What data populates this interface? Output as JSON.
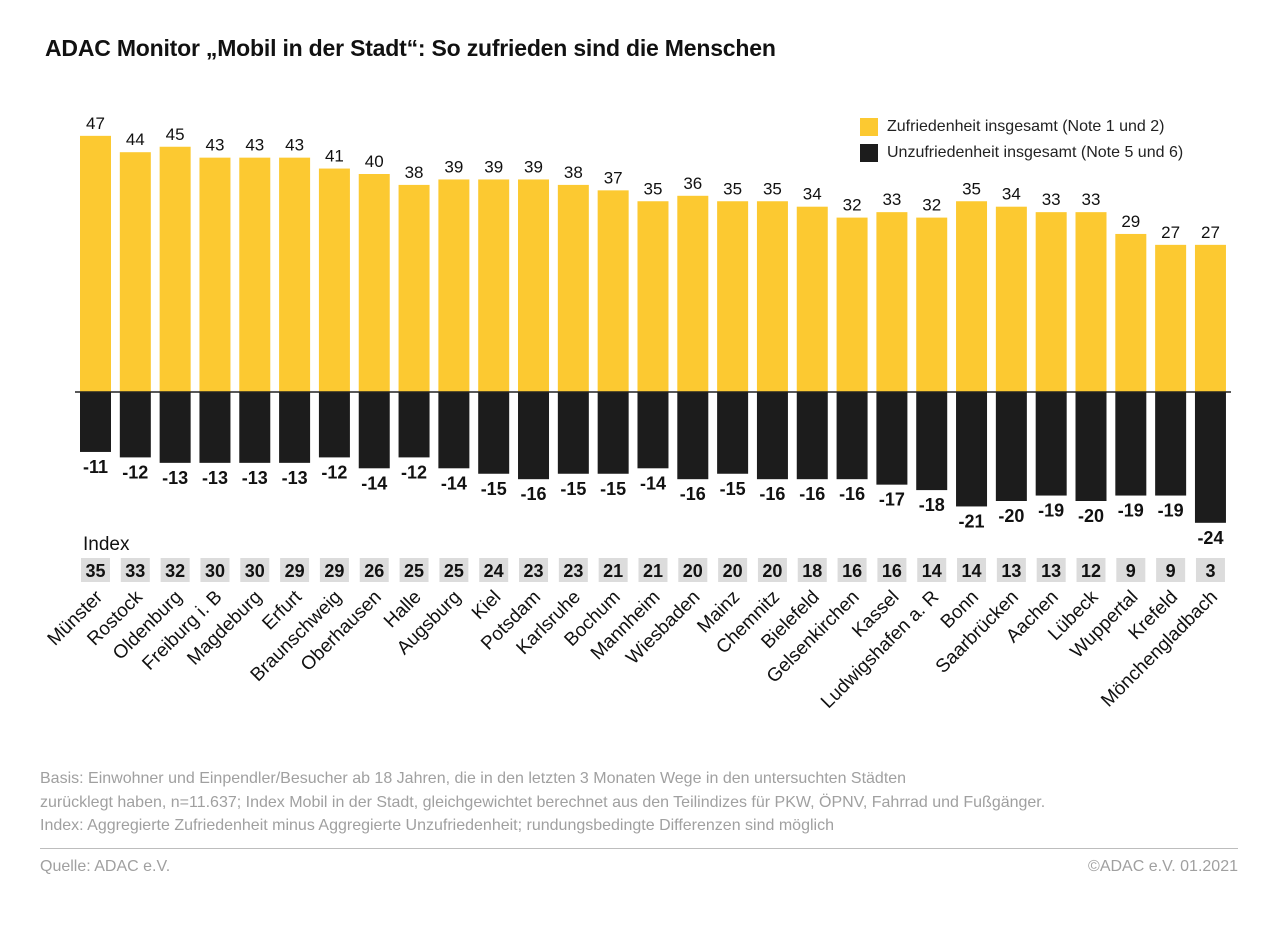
{
  "title": "ADAC Monitor „Mobil in der Stadt“: So zufrieden sind die Menschen",
  "legend": [
    {
      "label": "Zufriedenheit insgesamt (Note 1 und 2)",
      "color": "#FCC931"
    },
    {
      "label": "Unzufriedenheit insgesamt (Note 5 und 6)",
      "color": "#1C1C1C"
    }
  ],
  "index_label": "Index",
  "chart_data": {
    "type": "bar",
    "title": "ADAC Monitor „Mobil in der Stadt“: So zufrieden sind die Menschen",
    "xlabel": "",
    "ylabel": "",
    "ylim": [
      -24,
      47
    ],
    "grid": false,
    "legend_position": "top-right",
    "categories": [
      "Münster",
      "Rostock",
      "Oldenburg",
      "Freiburg i. B",
      "Magdeburg",
      "Erfurt",
      "Braunschweig",
      "Oberhausen",
      "Halle",
      "Augsburg",
      "Kiel",
      "Potsdam",
      "Karlsruhe",
      "Bochum",
      "Mannheim",
      "Wiesbaden",
      "Mainz",
      "Chemnitz",
      "Bielefeld",
      "Gelsenkirchen",
      "Kassel",
      "Ludwigshafen a. R",
      "Bonn",
      "Saarbrücken",
      "Aachen",
      "Lübeck",
      "Wuppertal",
      "Krefeld",
      "Mönchengladbach"
    ],
    "series": [
      {
        "name": "Zufriedenheit insgesamt (Note 1 und 2)",
        "color": "#FCC931",
        "values": [
          47,
          44,
          45,
          43,
          43,
          43,
          41,
          40,
          38,
          39,
          39,
          39,
          38,
          37,
          35,
          36,
          35,
          35,
          34,
          32,
          33,
          32,
          35,
          34,
          33,
          33,
          29,
          27,
          27
        ]
      },
      {
        "name": "Unzufriedenheit insgesamt (Note 5 und 6)",
        "color": "#1C1C1C",
        "values": [
          -11,
          -12,
          -13,
          -13,
          -13,
          -13,
          -12,
          -14,
          -12,
          -14,
          -15,
          -16,
          -15,
          -15,
          -14,
          -16,
          -15,
          -16,
          -16,
          -16,
          -17,
          -18,
          -21,
          -20,
          -19,
          -20,
          -19,
          -19,
          -24
        ]
      }
    ],
    "index": {
      "label": "Index",
      "values": [
        35,
        33,
        32,
        30,
        30,
        29,
        29,
        26,
        25,
        25,
        24,
        23,
        23,
        21,
        21,
        20,
        20,
        20,
        18,
        16,
        16,
        14,
        14,
        13,
        13,
        12,
        9,
        9,
        3
      ]
    }
  },
  "footnote": [
    "Basis: Einwohner und Einpendler/Besucher ab 18 Jahren, die in den letzten 3 Monaten Wege in den untersuchten Städten",
    "zurücklegt haben, n=11.637; Index Mobil in der Stadt, gleichgewichtet berechnet aus den Teilindizes für PKW, ÖPNV, Fahrrad und Fußgänger.",
    "Index: Aggregierte Zufriedenheit minus Aggregierte Unzufriedenheit; rundungsbedingte Differenzen sind möglich"
  ],
  "source": "Quelle: ADAC e.V.",
  "copyright": "©ADAC e.V.  01.2021"
}
